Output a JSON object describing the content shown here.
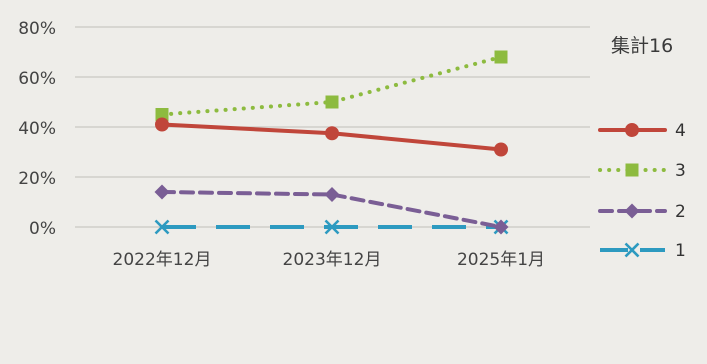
{
  "chart_data": {
    "type": "line",
    "title": "",
    "xlabel": "",
    "ylabel": "",
    "categories": [
      "2022年12月",
      "2023年12月",
      "2025年1月"
    ],
    "ylim": [
      0,
      80
    ],
    "yticks": [
      "0%",
      "20%",
      "40%",
      "60%",
      "80%"
    ],
    "grid": true,
    "legend_title": "集計16",
    "legend_placement": "right",
    "series": [
      {
        "name": "4",
        "values": [
          41,
          37.5,
          31
        ],
        "color": "#c0463a",
        "dash": "solid",
        "marker": "circle"
      },
      {
        "name": "3",
        "values": [
          45,
          50,
          68
        ],
        "color": "#8dbb3f",
        "dash": "dotted",
        "marker": "square"
      },
      {
        "name": "2",
        "values": [
          14,
          13,
          0
        ],
        "color": "#7a5e95",
        "dash": "dashed",
        "marker": "diamond"
      },
      {
        "name": "1",
        "values": [
          0,
          0,
          0
        ],
        "color": "#2d9ac0",
        "dash": "longdash",
        "marker": "x"
      }
    ]
  }
}
